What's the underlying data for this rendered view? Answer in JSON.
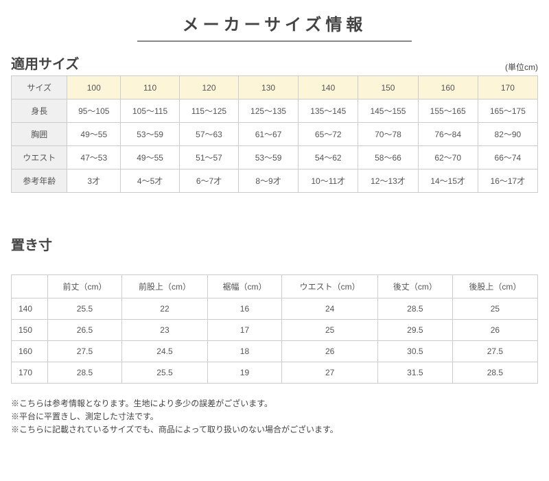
{
  "page_title": "メーカーサイズ情報",
  "section1": {
    "title": "適用サイズ",
    "unit": "(単位cm)"
  },
  "table1": {
    "header_bg": "#f0f0f0",
    "size_bg": "#fdf5d8",
    "border_color": "#cccccc",
    "row_labels": [
      "サイズ",
      "身長",
      "胸囲",
      "ウエスト",
      "参考年齢"
    ],
    "sizes": [
      "100",
      "110",
      "120",
      "130",
      "140",
      "150",
      "160",
      "170"
    ],
    "rows": [
      [
        "95～105",
        "105～115",
        "115～125",
        "125～135",
        "135～145",
        "145～155",
        "155～165",
        "165～175"
      ],
      [
        "49～55",
        "53～59",
        "57～63",
        "61～67",
        "65～72",
        "70～78",
        "76～84",
        "82～90"
      ],
      [
        "47～53",
        "49～55",
        "51～57",
        "53～59",
        "54～62",
        "58～66",
        "62～70",
        "66～74"
      ],
      [
        "3才",
        "4～5才",
        "6～7才",
        "8～9才",
        "10～11才",
        "12～13才",
        "14～15才",
        "16～17才"
      ]
    ]
  },
  "section2": {
    "title": "置き寸"
  },
  "table2": {
    "columns": [
      "",
      "前丈（cm）",
      "前股上（cm）",
      "裾幅（cm）",
      "ウエスト（cm）",
      "後丈（cm）",
      "後股上（cm）"
    ],
    "rows": [
      [
        "140",
        "25.5",
        "22",
        "16",
        "24",
        "28.5",
        "25"
      ],
      [
        "150",
        "26.5",
        "23",
        "17",
        "25",
        "29.5",
        "26"
      ],
      [
        "160",
        "27.5",
        "24.5",
        "18",
        "26",
        "30.5",
        "27.5"
      ],
      [
        "170",
        "28.5",
        "25.5",
        "19",
        "27",
        "31.5",
        "28.5"
      ]
    ]
  },
  "notes": [
    "※こちらは参考情報となります。生地により多少の誤差がございます。",
    "※平台に平置きし、測定した寸法です。",
    "※こちらに記載されているサイズでも、商品によって取り扱いのない場合がございます。"
  ]
}
